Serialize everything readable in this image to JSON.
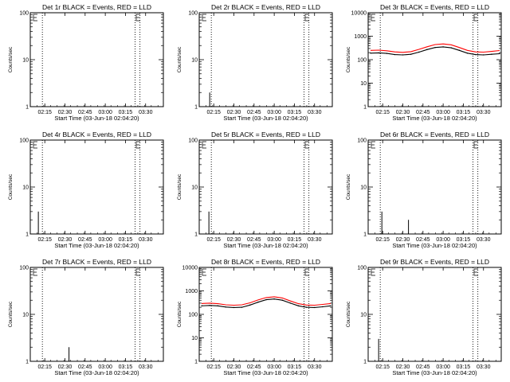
{
  "colors": {
    "events": "#000000",
    "lld": "#ff0000",
    "frame": "#000000",
    "background": "#ffffff"
  },
  "chart_data": [
    {
      "type": "line",
      "title": "Det 1r BLACK = Events, RED = LLD",
      "xlabel": "Start Time (03-Jun-18 02:04:20)",
      "ylabel": "Counts/sec",
      "yscale": "log",
      "ylim": [
        1,
        100
      ],
      "yticks": [
        1,
        10,
        100
      ],
      "ytick_labels": [
        "1",
        "10",
        "100"
      ],
      "xlim": [
        2.07,
        3.72
      ],
      "xticks": [
        2.25,
        2.5,
        2.75,
        3.0,
        3.25,
        3.5
      ],
      "xtick_labels": [
        "02:15",
        "02:30",
        "02:45",
        "03:00",
        "03:15",
        "03:30"
      ],
      "vlines": [
        2.22,
        3.37,
        3.43
      ],
      "spikes": [],
      "events": [],
      "lld": []
    },
    {
      "type": "line",
      "title": "Det 2r BLACK = Events, RED = LLD",
      "xlabel": "Start Time (03-Jun-18 02:04:20)",
      "ylabel": "Counts/sec",
      "yscale": "log",
      "ylim": [
        1,
        100
      ],
      "yticks": [
        1,
        10,
        100
      ],
      "ytick_labels": [
        "1",
        "10",
        "100"
      ],
      "xlim": [
        2.07,
        3.72
      ],
      "xticks": [
        2.25,
        2.5,
        2.75,
        3.0,
        3.25,
        3.5
      ],
      "xtick_labels": [
        "02:15",
        "02:30",
        "02:45",
        "03:00",
        "03:15",
        "03:30"
      ],
      "vlines": [
        2.22,
        3.37,
        3.43
      ],
      "spikes": [
        {
          "x": 2.2,
          "y": 2
        }
      ],
      "events": [],
      "lld": []
    },
    {
      "type": "line",
      "title": "Det 3r BLACK = Events, RED = LLD",
      "xlabel": "Start Time (03-Jun-18 02:04:20)",
      "ylabel": "Counts/sec",
      "yscale": "log",
      "ylim": [
        1,
        10000
      ],
      "yticks": [
        1,
        10,
        100,
        1000,
        10000
      ],
      "ytick_labels": [
        "1",
        "10",
        "100",
        "1000",
        "10000"
      ],
      "xlim": [
        2.07,
        3.72
      ],
      "xticks": [
        2.25,
        2.5,
        2.75,
        3.0,
        3.25,
        3.5
      ],
      "xtick_labels": [
        "02:15",
        "02:30",
        "02:45",
        "03:00",
        "03:15",
        "03:30"
      ],
      "vlines": [
        2.22,
        3.37,
        3.43
      ],
      "spikes": [],
      "events": [
        [
          2.1,
          190
        ],
        [
          2.2,
          195
        ],
        [
          2.3,
          185
        ],
        [
          2.4,
          165
        ],
        [
          2.5,
          160
        ],
        [
          2.6,
          170
        ],
        [
          2.7,
          210
        ],
        [
          2.8,
          270
        ],
        [
          2.9,
          330
        ],
        [
          3.0,
          350
        ],
        [
          3.1,
          320
        ],
        [
          3.2,
          250
        ],
        [
          3.3,
          190
        ],
        [
          3.4,
          165
        ],
        [
          3.5,
          160
        ],
        [
          3.6,
          170
        ],
        [
          3.7,
          180
        ]
      ],
      "lld": [
        [
          2.1,
          250
        ],
        [
          2.2,
          255
        ],
        [
          2.3,
          240
        ],
        [
          2.4,
          215
        ],
        [
          2.5,
          205
        ],
        [
          2.6,
          220
        ],
        [
          2.7,
          275
        ],
        [
          2.8,
          355
        ],
        [
          2.9,
          440
        ],
        [
          3.0,
          470
        ],
        [
          3.1,
          430
        ],
        [
          3.2,
          330
        ],
        [
          3.3,
          250
        ],
        [
          3.4,
          215
        ],
        [
          3.5,
          210
        ],
        [
          3.6,
          225
        ],
        [
          3.7,
          245
        ]
      ]
    },
    {
      "type": "line",
      "title": "Det 4r BLACK = Events, RED = LLD",
      "xlabel": "Start Time (03-Jun-18 02:04:20)",
      "ylabel": "Counts/sec",
      "yscale": "log",
      "ylim": [
        1,
        100
      ],
      "yticks": [
        1,
        10,
        100
      ],
      "ytick_labels": [
        "1",
        "10",
        "100"
      ],
      "xlim": [
        2.07,
        3.72
      ],
      "xticks": [
        2.25,
        2.5,
        2.75,
        3.0,
        3.25,
        3.5
      ],
      "xtick_labels": [
        "02:15",
        "02:30",
        "02:45",
        "03:00",
        "03:15",
        "03:30"
      ],
      "vlines": [
        2.22,
        3.37,
        3.43
      ],
      "spikes": [
        {
          "x": 2.17,
          "y": 3
        }
      ],
      "events": [],
      "lld": []
    },
    {
      "type": "line",
      "title": "Det 5r BLACK = Events, RED = LLD",
      "xlabel": "Start Time (03-Jun-18 02:04:20)",
      "ylabel": "Counts/sec",
      "yscale": "log",
      "ylim": [
        1,
        100
      ],
      "yticks": [
        1,
        10,
        100
      ],
      "ytick_labels": [
        "1",
        "10",
        "100"
      ],
      "xlim": [
        2.07,
        3.72
      ],
      "xticks": [
        2.25,
        2.5,
        2.75,
        3.0,
        3.25,
        3.5
      ],
      "xtick_labels": [
        "02:15",
        "02:30",
        "02:45",
        "03:00",
        "03:15",
        "03:30"
      ],
      "vlines": [
        2.22,
        3.37,
        3.43
      ],
      "spikes": [
        {
          "x": 2.19,
          "y": 3
        }
      ],
      "events": [],
      "lld": []
    },
    {
      "type": "line",
      "title": "Det 6r BLACK = Events, RED = LLD",
      "xlabel": "Start Time (03-Jun-18 02:04:20)",
      "ylabel": "Counts/sec",
      "yscale": "log",
      "ylim": [
        1,
        100
      ],
      "yticks": [
        1,
        10,
        100
      ],
      "ytick_labels": [
        "1",
        "10",
        "100"
      ],
      "xlim": [
        2.07,
        3.72
      ],
      "xticks": [
        2.25,
        2.5,
        2.75,
        3.0,
        3.25,
        3.5
      ],
      "xtick_labels": [
        "02:15",
        "02:30",
        "02:45",
        "03:00",
        "03:15",
        "03:30"
      ],
      "vlines": [
        2.22,
        3.37,
        3.43
      ],
      "spikes": [
        {
          "x": 2.24,
          "y": 3
        },
        {
          "x": 2.57,
          "y": 2
        }
      ],
      "events": [],
      "lld": []
    },
    {
      "type": "line",
      "title": "Det 7r BLACK = Events, RED = LLD",
      "xlabel": "Start Time (03-Jun-18 02:04:20)",
      "ylabel": "Counts/sec",
      "yscale": "log",
      "ylim": [
        1,
        100
      ],
      "yticks": [
        1,
        10,
        100
      ],
      "ytick_labels": [
        "1",
        "10",
        "100"
      ],
      "xlim": [
        2.07,
        3.72
      ],
      "xticks": [
        2.25,
        2.5,
        2.75,
        3.0,
        3.25,
        3.5
      ],
      "xtick_labels": [
        "02:15",
        "02:30",
        "02:45",
        "03:00",
        "03:15",
        "03:30"
      ],
      "vlines": [
        2.22,
        3.37,
        3.43
      ],
      "spikes": [
        {
          "x": 2.55,
          "y": 2
        }
      ],
      "events": [],
      "lld": []
    },
    {
      "type": "line",
      "title": "Det 8r BLACK = Events, RED = LLD",
      "xlabel": "Start Time (03-Jun-18 02:04:20)",
      "ylabel": "Counts/sec",
      "yscale": "log",
      "ylim": [
        1,
        10000
      ],
      "yticks": [
        1,
        10,
        100,
        1000,
        10000
      ],
      "ytick_labels": [
        "1",
        "10",
        "100",
        "1000",
        "10000"
      ],
      "xlim": [
        2.07,
        3.72
      ],
      "xticks": [
        2.25,
        2.5,
        2.75,
        3.0,
        3.25,
        3.5
      ],
      "xtick_labels": [
        "02:15",
        "02:30",
        "02:45",
        "03:00",
        "03:15",
        "03:30"
      ],
      "vlines": [
        2.22,
        3.37,
        3.43
      ],
      "spikes": [],
      "events": [
        [
          2.1,
          230
        ],
        [
          2.2,
          240
        ],
        [
          2.3,
          230
        ],
        [
          2.4,
          205
        ],
        [
          2.5,
          195
        ],
        [
          2.6,
          200
        ],
        [
          2.7,
          250
        ],
        [
          2.8,
          330
        ],
        [
          2.9,
          420
        ],
        [
          3.0,
          450
        ],
        [
          3.1,
          400
        ],
        [
          3.2,
          300
        ],
        [
          3.3,
          230
        ],
        [
          3.4,
          200
        ],
        [
          3.5,
          195
        ],
        [
          3.6,
          210
        ],
        [
          3.7,
          230
        ]
      ],
      "lld": [
        [
          2.1,
          290
        ],
        [
          2.2,
          300
        ],
        [
          2.3,
          285
        ],
        [
          2.4,
          255
        ],
        [
          2.5,
          245
        ],
        [
          2.6,
          255
        ],
        [
          2.7,
          310
        ],
        [
          2.8,
          410
        ],
        [
          2.9,
          520
        ],
        [
          3.0,
          560
        ],
        [
          3.1,
          500
        ],
        [
          3.2,
          370
        ],
        [
          3.3,
          285
        ],
        [
          3.4,
          250
        ],
        [
          3.5,
          245
        ],
        [
          3.6,
          265
        ],
        [
          3.7,
          290
        ]
      ]
    },
    {
      "type": "line",
      "title": "Det 9r BLACK = Events, RED = LLD",
      "xlabel": "Start Time (03-Jun-18 02:04:20)",
      "ylabel": "Counts/sec",
      "yscale": "log",
      "ylim": [
        1,
        100
      ],
      "yticks": [
        1,
        10,
        100
      ],
      "ytick_labels": [
        "1",
        "10",
        "100"
      ],
      "xlim": [
        2.07,
        3.72
      ],
      "xticks": [
        2.25,
        2.5,
        2.75,
        3.0,
        3.25,
        3.5
      ],
      "xtick_labels": [
        "02:15",
        "02:30",
        "02:45",
        "03:00",
        "03:15",
        "03:30"
      ],
      "vlines": [
        2.22,
        3.37,
        3.43
      ],
      "spikes": [
        {
          "x": 2.2,
          "y": 3
        }
      ],
      "events": [],
      "lld": []
    }
  ]
}
